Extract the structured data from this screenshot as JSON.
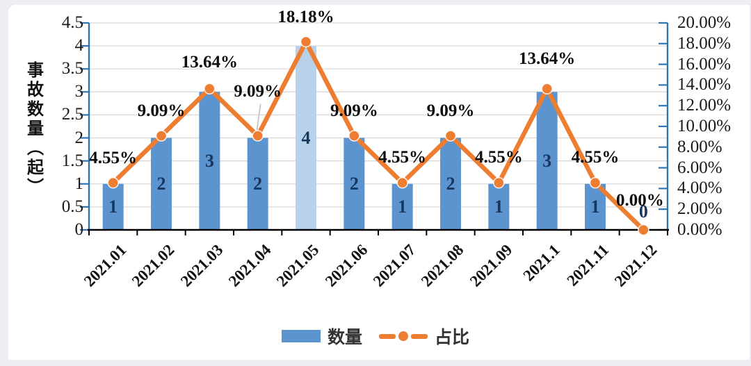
{
  "page": {
    "frame_color": "#eceef4",
    "card_color": "#ffffff"
  },
  "chart": {
    "y_axis_title": "事故数量（起）",
    "legend": {
      "bar_label": "数量",
      "line_label": "占比"
    }
  },
  "chart_data": {
    "type": "bar+line",
    "categories": [
      "2021.01",
      "2021.02",
      "2021.03",
      "2021.04",
      "2021.05",
      "2021.06",
      "2021.07",
      "2021.08",
      "2021.09",
      "2021.1",
      "2021.11",
      "2021.12"
    ],
    "series": [
      {
        "name": "数量",
        "type": "bar",
        "axis": "left",
        "values": [
          1,
          2,
          3,
          2,
          4,
          2,
          1,
          2,
          1,
          3,
          1,
          0
        ],
        "data_labels": [
          "1",
          "2",
          "3",
          "2",
          "4",
          "2",
          "1",
          "2",
          "1",
          "3",
          "1",
          "0"
        ]
      },
      {
        "name": "占比",
        "type": "line",
        "axis": "right",
        "values": [
          4.55,
          9.09,
          13.64,
          9.09,
          18.18,
          9.09,
          4.55,
          9.09,
          4.55,
          13.64,
          4.55,
          0.0
        ],
        "data_labels": [
          "4.55%",
          "9.09%",
          "13.64%",
          "9.09%",
          "18.18%",
          "9.09%",
          "4.55%",
          "9.09%",
          "4.55%",
          "13.64%",
          "4.55%",
          "0.00%"
        ]
      }
    ],
    "left_axis": {
      "ticks": [
        "4.5",
        "4",
        "3.5",
        "3",
        "2.5",
        "2",
        "1.5",
        "1",
        "0.5",
        "0"
      ],
      "min": 0,
      "max": 4.5
    },
    "right_axis": {
      "ticks": [
        "20.00%",
        "18.00%",
        "16.00%",
        "14.00%",
        "12.00%",
        "10.00%",
        "8.00%",
        "6.00%",
        "4.00%",
        "2.00%",
        "0.00%"
      ],
      "min": 0,
      "max": 20
    },
    "colors": {
      "bar": "#5b94cf",
      "bar_highlight": "#b9d2ec",
      "bar_colors": [
        "#5b94cf",
        "#5b94cf",
        "#5b94cf",
        "#5b94cf",
        "#b9d2ec",
        "#5b94cf",
        "#5b94cf",
        "#5b94cf",
        "#5b94cf",
        "#5b94cf",
        "#5b94cf",
        "#5b94cf"
      ],
      "line": "#ed7d31",
      "axis_blue": "#2e75b6",
      "axis_black": "#000000",
      "gridline": "#d9d9d9",
      "bar_label": "#17375e",
      "leader": "#bfbfbf"
    },
    "layout": {
      "grid": true,
      "legend_position": "bottom",
      "label_dy": [
        -35,
        -36,
        -38,
        -64,
        -35,
        -36,
        -36,
        -36,
        -36,
        -43,
        -36,
        -42
      ],
      "leader_index": 3
    }
  }
}
